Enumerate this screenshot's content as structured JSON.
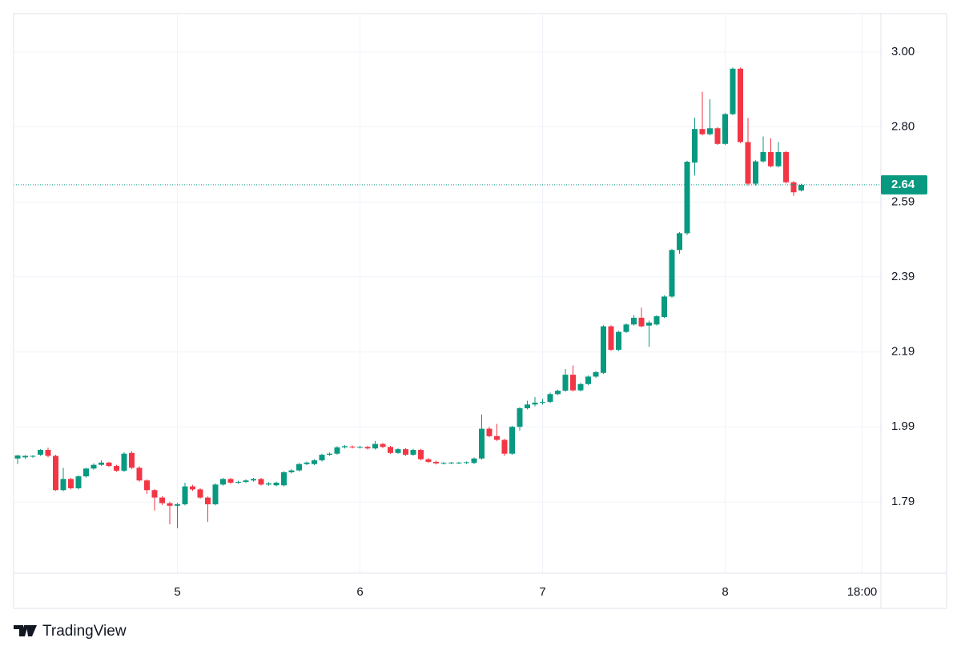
{
  "chart_data": {
    "type": "candlestick",
    "brand": "TradingView",
    "up_color": "#089981",
    "down_color": "#f23645",
    "categories": [
      null,
      null,
      null,
      null,
      null,
      null,
      null,
      null,
      null,
      null,
      null,
      null,
      null,
      null,
      null,
      null,
      null,
      null,
      null,
      null,
      null,
      "5",
      null,
      null,
      null,
      null,
      null,
      null,
      null,
      null,
      null,
      null,
      null,
      null,
      null,
      null,
      null,
      null,
      null,
      null,
      null,
      null,
      null,
      null,
      null,
      "6",
      null,
      null,
      null,
      null,
      null,
      null,
      null,
      null,
      null,
      null,
      null,
      null,
      null,
      null,
      null,
      null,
      null,
      null,
      null,
      null,
      null,
      null,
      null,
      "7",
      null,
      null,
      null,
      null,
      null,
      null,
      null,
      null,
      null,
      null,
      null,
      null,
      null,
      null,
      null,
      null,
      null,
      null,
      null,
      null,
      null,
      null,
      null,
      "8",
      null,
      null,
      null,
      null,
      null,
      null,
      null,
      null,
      null,
      null,
      null,
      null,
      null,
      null,
      null,
      null,
      null,
      "18:00"
    ],
    "open": [
      1.905,
      1.908,
      1.91,
      1.915,
      1.928,
      1.912,
      1.82,
      1.85,
      1.825,
      1.857,
      1.878,
      1.888,
      1.894,
      1.885,
      1.872,
      1.92,
      1.88,
      1.846,
      1.82,
      1.8,
      1.785,
      1.778,
      1.782,
      1.83,
      1.822,
      1.8,
      1.782,
      1.835,
      1.85,
      1.84,
      1.842,
      1.846,
      1.85,
      1.835,
      1.833,
      1.833,
      1.868,
      1.873,
      1.89,
      1.89,
      1.9,
      1.915,
      1.918,
      1.935,
      1.937,
      1.935,
      1.936,
      1.932,
      1.944,
      1.936,
      1.92,
      1.93,
      1.915,
      1.928,
      1.903,
      1.896,
      1.892,
      1.893,
      1.893,
      1.893,
      1.893,
      1.905,
      1.985,
      1.965,
      1.955,
      1.918,
      1.99,
      2.04,
      2.05,
      2.055,
      2.057,
      2.078,
      2.087,
      2.13,
      2.088,
      2.105,
      2.125,
      2.135,
      2.26,
      2.197,
      2.245,
      2.265,
      2.283,
      2.262,
      2.265,
      2.285,
      2.34,
      2.465,
      2.51,
      2.7,
      2.79,
      2.776,
      2.792,
      2.75,
      2.83,
      2.952,
      2.755,
      2.643,
      2.703,
      2.728,
      2.69,
      2.728,
      2.647,
      2.625,
      null,
      null,
      null,
      null,
      null,
      null,
      null,
      null
    ],
    "high": [
      1.915,
      1.914,
      1.914,
      1.93,
      1.934,
      1.915,
      1.88,
      1.853,
      1.86,
      1.88,
      1.892,
      1.9,
      1.896,
      1.888,
      1.922,
      1.925,
      1.884,
      1.849,
      1.823,
      1.804,
      1.789,
      1.786,
      1.84,
      1.834,
      1.825,
      1.803,
      1.838,
      1.853,
      1.853,
      1.845,
      1.849,
      1.853,
      1.853,
      1.841,
      1.843,
      1.871,
      1.876,
      1.893,
      1.897,
      1.903,
      1.918,
      1.921,
      1.938,
      1.941,
      1.94,
      1.939,
      1.939,
      1.952,
      1.947,
      1.939,
      1.933,
      1.933,
      1.931,
      1.931,
      1.906,
      1.899,
      1.896,
      1.896,
      1.896,
      1.897,
      1.908,
      2.023,
      1.99,
      1.998,
      1.958,
      1.993,
      2.043,
      2.06,
      2.07,
      2.065,
      2.082,
      2.09,
      2.145,
      2.155,
      2.108,
      2.128,
      2.14,
      2.263,
      2.263,
      2.248,
      2.268,
      2.29,
      2.31,
      2.275,
      2.29,
      2.343,
      2.468,
      2.513,
      2.705,
      2.82,
      2.89,
      2.87,
      2.795,
      2.833,
      2.955,
      2.955,
      2.82,
      2.706,
      2.77,
      2.765,
      2.755,
      2.731,
      2.65,
      2.643,
      null,
      null,
      null,
      null,
      null,
      null,
      null,
      null
    ],
    "low": [
      1.89,
      1.904,
      1.907,
      1.912,
      1.908,
      1.818,
      1.817,
      1.822,
      1.822,
      1.854,
      1.875,
      1.885,
      1.882,
      1.869,
      1.869,
      1.877,
      1.843,
      1.81,
      1.765,
      1.78,
      1.728,
      1.718,
      1.779,
      1.818,
      1.797,
      1.735,
      1.779,
      1.832,
      1.837,
      1.837,
      1.839,
      1.843,
      1.832,
      1.832,
      1.83,
      1.83,
      1.865,
      1.87,
      1.887,
      1.887,
      1.897,
      1.912,
      1.915,
      1.932,
      1.932,
      1.932,
      1.929,
      1.929,
      1.933,
      1.917,
      1.917,
      1.912,
      1.912,
      1.9,
      1.893,
      1.889,
      1.889,
      1.89,
      1.89,
      1.89,
      1.89,
      1.902,
      1.962,
      1.952,
      1.912,
      1.915,
      1.98,
      2.037,
      2.045,
      2.05,
      2.054,
      2.075,
      2.084,
      2.085,
      2.085,
      2.102,
      2.122,
      2.132,
      2.194,
      2.194,
      2.242,
      2.262,
      2.257,
      2.205,
      2.262,
      2.282,
      2.337,
      2.455,
      2.505,
      2.665,
      2.773,
      2.773,
      2.747,
      2.747,
      2.827,
      2.752,
      2.638,
      2.638,
      2.7,
      2.687,
      2.687,
      2.644,
      2.61,
      2.622,
      null,
      null,
      null,
      null,
      null,
      null,
      null,
      null
    ],
    "close": [
      1.913,
      1.912,
      1.912,
      1.928,
      1.912,
      1.82,
      1.85,
      1.825,
      1.857,
      1.878,
      1.888,
      1.894,
      1.885,
      1.872,
      1.918,
      1.88,
      1.846,
      1.82,
      1.8,
      1.785,
      1.778,
      1.782,
      1.83,
      1.822,
      1.8,
      1.782,
      1.835,
      1.85,
      1.84,
      1.842,
      1.846,
      1.85,
      1.835,
      1.838,
      1.84,
      1.868,
      1.873,
      1.89,
      1.894,
      1.9,
      1.915,
      1.918,
      1.935,
      1.938,
      1.935,
      1.936,
      1.932,
      1.944,
      1.936,
      1.92,
      1.93,
      1.915,
      1.928,
      1.903,
      1.896,
      1.892,
      1.893,
      1.894,
      1.894,
      1.895,
      1.905,
      1.985,
      1.965,
      1.955,
      1.918,
      1.99,
      2.04,
      2.05,
      2.055,
      2.057,
      2.078,
      2.087,
      2.13,
      2.088,
      2.105,
      2.125,
      2.137,
      2.26,
      2.197,
      2.245,
      2.265,
      2.283,
      2.26,
      2.27,
      2.287,
      2.34,
      2.465,
      2.51,
      2.702,
      2.79,
      2.776,
      2.792,
      2.75,
      2.83,
      2.952,
      2.755,
      2.643,
      2.703,
      2.728,
      2.69,
      2.728,
      2.647,
      2.62,
      2.64,
      null,
      null,
      null,
      null,
      null,
      null,
      null,
      null
    ],
    "last_price": 2.64,
    "ylim": [
      1.597,
      3.1
    ],
    "yticks": [
      {
        "value": 2.997,
        "label": "3.00"
      },
      {
        "value": 2.796,
        "label": "2.80"
      },
      {
        "value": 2.594,
        "label": "2.59"
      },
      {
        "value": 2.393,
        "label": "2.39"
      },
      {
        "value": 2.191,
        "label": "2.19"
      },
      {
        "value": 1.99,
        "label": "1.99"
      },
      {
        "value": 1.788,
        "label": "1.79"
      }
    ],
    "grid": true
  }
}
